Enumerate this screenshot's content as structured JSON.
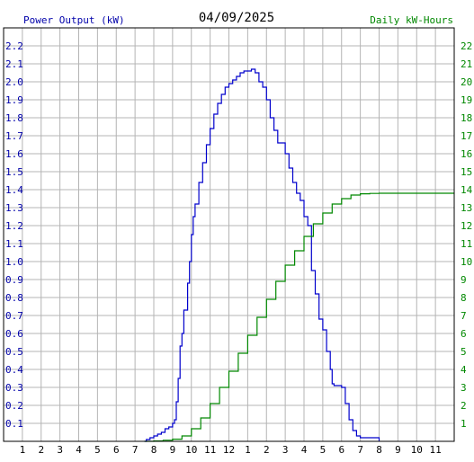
{
  "chart_data": {
    "type": "line",
    "title": "04/09/2025",
    "left_axis_label": "Power Output (kW)",
    "right_axis_label": "Daily kW-Hours",
    "x_ticks": [
      "1",
      "2",
      "3",
      "4",
      "5",
      "6",
      "7",
      "8",
      "9",
      "10",
      "11",
      "12",
      "1",
      "2",
      "3",
      "4",
      "5",
      "6",
      "7",
      "8",
      "9",
      "10",
      "11"
    ],
    "x_range_hours": [
      0,
      24
    ],
    "left_ylim": [
      0,
      2.3
    ],
    "left_ticks": [
      0.1,
      0.2,
      0.3,
      0.4,
      0.5,
      0.6,
      0.7,
      0.8,
      0.9,
      1.0,
      1.1,
      1.2,
      1.3,
      1.4,
      1.5,
      1.6,
      1.7,
      1.8,
      1.9,
      2.0,
      2.1,
      2.2
    ],
    "right_ylim": [
      0,
      23
    ],
    "right_ticks": [
      1,
      2,
      3,
      4,
      5,
      6,
      7,
      8,
      9,
      10,
      11,
      12,
      13,
      14,
      15,
      16,
      17,
      18,
      19,
      20,
      21,
      22
    ],
    "grid": true,
    "series": [
      {
        "name": "Power Output (kW)",
        "axis": "left",
        "color": "#0000cc",
        "points": [
          [
            7.5,
            0.0
          ],
          [
            7.6,
            0.01
          ],
          [
            7.8,
            0.02
          ],
          [
            8.0,
            0.03
          ],
          [
            8.2,
            0.04
          ],
          [
            8.4,
            0.05
          ],
          [
            8.6,
            0.07
          ],
          [
            8.8,
            0.08
          ],
          [
            9.0,
            0.1
          ],
          [
            9.1,
            0.12
          ],
          [
            9.2,
            0.22
          ],
          [
            9.3,
            0.35
          ],
          [
            9.4,
            0.53
          ],
          [
            9.5,
            0.6
          ],
          [
            9.6,
            0.73
          ],
          [
            9.8,
            0.88
          ],
          [
            9.9,
            1.0
          ],
          [
            10.0,
            1.15
          ],
          [
            10.1,
            1.25
          ],
          [
            10.2,
            1.32
          ],
          [
            10.4,
            1.44
          ],
          [
            10.6,
            1.55
          ],
          [
            10.8,
            1.65
          ],
          [
            11.0,
            1.74
          ],
          [
            11.2,
            1.82
          ],
          [
            11.4,
            1.88
          ],
          [
            11.6,
            1.93
          ],
          [
            11.8,
            1.97
          ],
          [
            12.0,
            1.99
          ],
          [
            12.2,
            2.01
          ],
          [
            12.4,
            2.03
          ],
          [
            12.6,
            2.05
          ],
          [
            12.8,
            2.06
          ],
          [
            13.0,
            2.06
          ],
          [
            13.2,
            2.07
          ],
          [
            13.4,
            2.05
          ],
          [
            13.6,
            2.0
          ],
          [
            13.8,
            1.97
          ],
          [
            14.0,
            1.9
          ],
          [
            14.2,
            1.8
          ],
          [
            14.4,
            1.73
          ],
          [
            14.6,
            1.66
          ],
          [
            14.8,
            1.66
          ],
          [
            15.0,
            1.6
          ],
          [
            15.2,
            1.52
          ],
          [
            15.4,
            1.44
          ],
          [
            15.6,
            1.38
          ],
          [
            15.8,
            1.34
          ],
          [
            16.0,
            1.25
          ],
          [
            16.2,
            1.2
          ],
          [
            16.4,
            0.95
          ],
          [
            16.6,
            0.82
          ],
          [
            16.8,
            0.68
          ],
          [
            17.0,
            0.62
          ],
          [
            17.2,
            0.5
          ],
          [
            17.4,
            0.4
          ],
          [
            17.5,
            0.32
          ],
          [
            17.6,
            0.31
          ],
          [
            17.8,
            0.31
          ],
          [
            18.0,
            0.3
          ],
          [
            18.2,
            0.21
          ],
          [
            18.4,
            0.12
          ],
          [
            18.6,
            0.06
          ],
          [
            18.8,
            0.03
          ],
          [
            19.0,
            0.02
          ],
          [
            19.4,
            0.02
          ],
          [
            19.9,
            0.02
          ],
          [
            20.0,
            0.0
          ]
        ]
      },
      {
        "name": "Daily kW-Hours",
        "axis": "right",
        "color": "#008800",
        "points": [
          [
            7.5,
            0.0
          ],
          [
            8.0,
            0.02
          ],
          [
            8.5,
            0.06
          ],
          [
            9.0,
            0.12
          ],
          [
            9.5,
            0.3
          ],
          [
            10.0,
            0.7
          ],
          [
            10.5,
            1.3
          ],
          [
            11.0,
            2.1
          ],
          [
            11.5,
            3.0
          ],
          [
            12.0,
            3.9
          ],
          [
            12.5,
            4.9
          ],
          [
            13.0,
            5.9
          ],
          [
            13.5,
            6.9
          ],
          [
            14.0,
            7.9
          ],
          [
            14.5,
            8.9
          ],
          [
            15.0,
            9.8
          ],
          [
            15.5,
            10.6
          ],
          [
            16.0,
            11.4
          ],
          [
            16.5,
            12.1
          ],
          [
            17.0,
            12.7
          ],
          [
            17.5,
            13.2
          ],
          [
            18.0,
            13.5
          ],
          [
            18.5,
            13.7
          ],
          [
            19.0,
            13.77
          ],
          [
            19.5,
            13.79
          ],
          [
            20.0,
            13.8
          ],
          [
            24.0,
            13.8
          ]
        ]
      }
    ]
  },
  "colors": {
    "left_axis_text": "#0000aa",
    "right_axis_text": "#008800",
    "grid": "#b4b4b4",
    "border": "#000000"
  }
}
